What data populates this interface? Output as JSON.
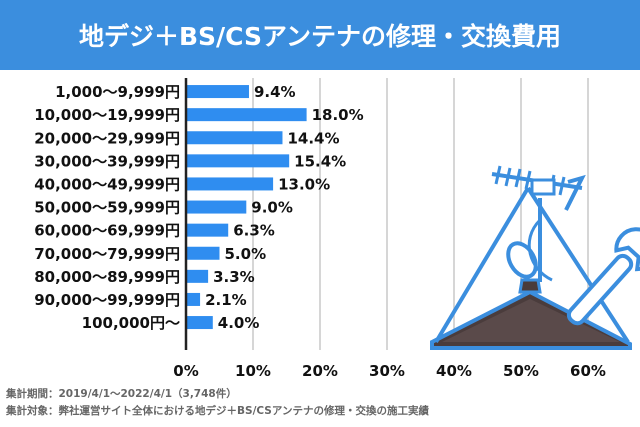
{
  "title": "地デジ＋BS/CSアンテナの修理・交換費用",
  "colors": {
    "banner": "#3b8ede",
    "bar": "#2f8df0",
    "axis": "#222222",
    "grid": "#c8c8c8",
    "illustration": "#3b8ede",
    "roof": "#4a3c3c"
  },
  "illustration": {
    "icon_name": "antenna-repair-roof-wrench-icon"
  },
  "notes": {
    "period": "集計期間：2019/4/1～2022/4/1（3,748件）",
    "target": "集計対象：弊社運営サイト全体における地デジ＋BS/CSアンテナの修理・交換の施工実績"
  },
  "chart_data": {
    "type": "bar",
    "orientation": "horizontal",
    "categories": [
      "1,000～9,999円",
      "10,000～19,999円",
      "20,000～29,999円",
      "30,000～39,999円",
      "40,000～49,999円",
      "50,000～59,999円",
      "60,000～69,999円",
      "70,000～79,999円",
      "80,000～89,999円",
      "90,000～99,999円",
      "100,000円～"
    ],
    "values": [
      9.4,
      18.0,
      14.4,
      15.4,
      13.0,
      9.0,
      6.3,
      5.0,
      3.3,
      2.1,
      4.0
    ],
    "value_labels": [
      "9.4%",
      "18.0%",
      "14.4%",
      "15.4%",
      "13.0%",
      "9.0%",
      "6.3%",
      "5.0%",
      "3.3%",
      "2.1%",
      "4.0%"
    ],
    "x_ticks": [
      "0%",
      "10%",
      "20%",
      "30%",
      "40%",
      "50%",
      "60%"
    ],
    "xlim": [
      0,
      60
    ],
    "grid": true,
    "legend": "none"
  }
}
